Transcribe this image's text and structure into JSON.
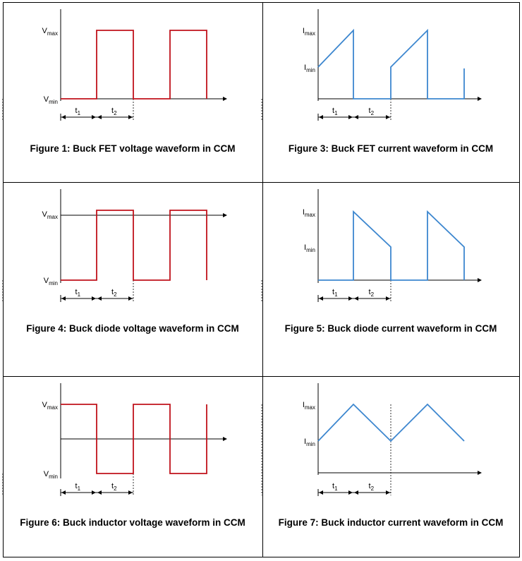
{
  "labels": {
    "vmax_base": "V",
    "vmax_sub": "max",
    "vmin_base": "V",
    "vmin_sub": "min",
    "imax_base": "I",
    "imax_sub": "max",
    "imin_base": "I",
    "imin_sub": "min",
    "t1_base": "t",
    "t1_sub": "1",
    "t2_base": "t",
    "t2_sub": "2"
  },
  "colors": {
    "voltage": "#c0121b",
    "current": "#3d87cf",
    "axis": "#000000"
  },
  "panels": [
    {
      "id": "fig1",
      "caption": "Figure 1: Buck FET voltage waveform in CCM",
      "kind": "voltage",
      "waveform": "fet-voltage",
      "ylabels": [
        "V",
        "V"
      ]
    },
    {
      "id": "fig3",
      "caption": "Figure 3: Buck FET current waveform in CCM",
      "kind": "current",
      "waveform": "fet-current",
      "ylabels": [
        "I",
        "I"
      ]
    },
    {
      "id": "fig4",
      "caption": "Figure 4: Buck diode voltage waveform in CCM",
      "kind": "voltage",
      "waveform": "diode-voltage",
      "ylabels": [
        "V",
        "V"
      ]
    },
    {
      "id": "fig5",
      "caption": "Figure 5: Buck diode current waveform in CCM",
      "kind": "current",
      "waveform": "diode-current",
      "ylabels": [
        "I",
        "I"
      ]
    },
    {
      "id": "fig6",
      "caption": "Figure 6: Buck inductor voltage waveform in CCM",
      "kind": "voltage",
      "waveform": "inductor-voltage",
      "ylabels": [
        "V",
        "V"
      ]
    },
    {
      "id": "fig7",
      "caption": "Figure 7: Buck inductor current waveform in CCM",
      "kind": "current",
      "waveform": "inductor-current",
      "ylabels": [
        "I",
        "I"
      ]
    }
  ]
}
